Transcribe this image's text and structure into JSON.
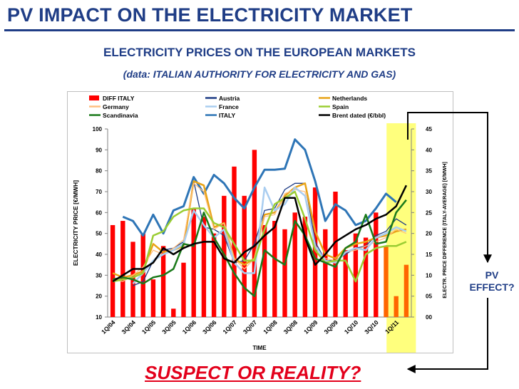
{
  "header": {
    "title": "PV IMPACT ON THE ELECTRICITY MARKET",
    "subtitle": "ELECTRICITY PRICES ON THE EUROPEAN MARKETS",
    "source": "(data: ITALIAN AUTHORITY FOR ELECTRICITY AND GAS)"
  },
  "annotations": {
    "pv_effect_line1": "PV",
    "pv_effect_line2": "EFFECT?",
    "suspect": "SUSPECT OR REALITY?"
  },
  "colors": {
    "title": "#1f3d86",
    "suspect": "#e3001b",
    "highlight": "#ffff66"
  },
  "chart_data": {
    "type": "bar+line",
    "xlabel": "TIME",
    "ylabel": "ELECTRICITY PRICE [€/MWH]",
    "y2label": "ELECTR. PRICE DIFFERENCE (ITALY-AVERAGE) [€/MWH]",
    "ylim": [
      10,
      100
    ],
    "y2lim": [
      0,
      45
    ],
    "yticks": [
      "10",
      "20",
      "30",
      "40",
      "50",
      "60",
      "70",
      "80",
      "90",
      "100"
    ],
    "y2ticks": [
      "00",
      "05",
      "10",
      "15",
      "20",
      "25",
      "30",
      "35",
      "40",
      "45"
    ],
    "xtick_labels": [
      "1Q/04",
      "3Q/04",
      "1Q/05",
      "3Q/05",
      "1Q/06",
      "3Q/06",
      "1Q/07",
      "3Q/07",
      "1Q/08",
      "3Q/08",
      "1Q/09",
      "3Q/09",
      "1Q/10",
      "3Q/10",
      "1Q/11"
    ],
    "categories": [
      "1Q/04",
      "2Q/04",
      "3Q/04",
      "4Q/04",
      "1Q/05",
      "2Q/05",
      "3Q/05",
      "4Q/05",
      "1Q/06",
      "2Q/06",
      "3Q/06",
      "4Q/06",
      "1Q/07",
      "2Q/07",
      "3Q/07",
      "4Q/07",
      "1Q/08",
      "2Q/08",
      "3Q/08",
      "4Q/08",
      "1Q/09",
      "2Q/09",
      "3Q/09",
      "4Q/09",
      "1Q/10",
      "2Q/10",
      "3Q/10",
      "4Q/10",
      "1Q/11",
      "2Q/11"
    ],
    "highlight_range": [
      "1Q/11",
      "2Q/11"
    ],
    "grid": false,
    "legend": [
      {
        "name": "DIFF ITALY",
        "color": "#ff0000",
        "kind": "bar"
      },
      {
        "name": "Austria",
        "color": "#1f3d86",
        "kind": "line"
      },
      {
        "name": "Netherlands",
        "color": "#e8a317",
        "kind": "line"
      },
      {
        "name": "Germany",
        "color": "#ffbf80",
        "kind": "line"
      },
      {
        "name": "France",
        "color": "#a9cdf0",
        "kind": "line"
      },
      {
        "name": "Spain",
        "color": "#9acd32",
        "kind": "line"
      },
      {
        "name": "Scandinavia",
        "color": "#1a7a1a",
        "kind": "line"
      },
      {
        "name": "ITALY",
        "color": "#2e75b6",
        "kind": "line"
      },
      {
        "name": "Brent dated (€/bbl)",
        "color": "#000000",
        "kind": "line"
      }
    ],
    "bars": {
      "name": "DIFF ITALY",
      "axis": "right",
      "values": [
        22,
        23,
        18,
        20,
        9,
        17,
        2,
        13,
        26,
        24,
        20,
        29,
        36,
        29,
        40,
        22,
        23,
        21,
        25,
        24,
        31,
        21,
        30,
        16,
        20,
        19,
        25,
        17,
        5,
        12.5
      ],
      "orange_from_index": 27,
      "orange_color": "#ff6600"
    },
    "series": [
      {
        "name": "ITALY",
        "color": "#2e75b6",
        "width": 3,
        "values": [
          null,
          58,
          56,
          49,
          59,
          50,
          61,
          63,
          77,
          69,
          78,
          74,
          67,
          62,
          72,
          80.5,
          80.5,
          81,
          95,
          90,
          75,
          56,
          64,
          61,
          54,
          56,
          62,
          69,
          65,
          null
        ]
      },
      {
        "name": "Austria",
        "color": "#1f3d86",
        "width": 1.3,
        "values": [
          null,
          null,
          25,
          27,
          37,
          42,
          43,
          46,
          75,
          53,
          52,
          49,
          36,
          37,
          45,
          61,
          62,
          71,
          74,
          74,
          46,
          37,
          37,
          40,
          43,
          44,
          49,
          51,
          57,
          54
        ]
      },
      {
        "name": "Netherlands",
        "color": "#e8a317",
        "width": 2.5,
        "values": [
          31,
          29,
          30,
          32,
          45,
          41,
          42,
          44,
          75,
          73,
          53,
          55,
          38,
          35,
          38,
          59,
          60,
          68,
          72,
          74,
          51,
          40,
          38,
          43,
          45,
          46,
          48,
          49,
          51,
          52
        ]
      },
      {
        "name": "Germany",
        "color": "#ffbf80",
        "width": 1.3,
        "values": [
          28,
          27,
          30,
          34,
          42,
          40,
          43,
          47,
          74,
          70,
          52,
          55,
          38,
          33,
          38,
          58,
          59,
          69,
          71,
          70,
          43,
          38,
          37,
          41,
          42,
          44,
          46,
          48,
          52,
          50
        ]
      },
      {
        "name": "France",
        "color": "#a9cdf0",
        "width": 2.5,
        "values": [
          null,
          null,
          26,
          31,
          37,
          40,
          42,
          45,
          61,
          54,
          48,
          52,
          36,
          31,
          31,
          72,
          61,
          64,
          72,
          68,
          44,
          37,
          36,
          41,
          43,
          42,
          48,
          50,
          53,
          51
        ]
      },
      {
        "name": "Spain",
        "color": "#9acd32",
        "width": 2.5,
        "values": [
          27,
          28,
          29,
          31,
          49,
          51,
          58,
          61,
          62,
          62,
          55,
          53,
          45,
          37,
          37,
          52,
          64,
          67,
          70,
          57,
          42,
          36,
          37,
          37,
          27,
          40,
          43,
          44,
          44,
          46
        ]
      },
      {
        "name": "Scandinavia",
        "color": "#1a7a1a",
        "width": 2.5,
        "values": [
          28,
          29,
          28,
          26,
          29,
          30,
          33,
          45,
          44,
          60,
          48,
          40,
          31,
          24,
          20,
          42,
          38,
          35,
          56,
          49,
          38,
          36,
          34,
          43,
          46,
          59,
          45,
          46,
          60,
          66
        ]
      },
      {
        "name": "Brent dated (€/bbl)",
        "color": "#000000",
        "width": 2.5,
        "values": [
          27,
          30,
          33,
          33,
          36,
          43,
          40,
          43,
          45,
          46,
          46,
          38,
          36,
          41,
          44,
          49,
          53,
          67,
          67,
          48,
          35,
          40,
          46,
          49,
          52,
          54,
          57,
          59,
          63,
          73
        ]
      }
    ]
  }
}
